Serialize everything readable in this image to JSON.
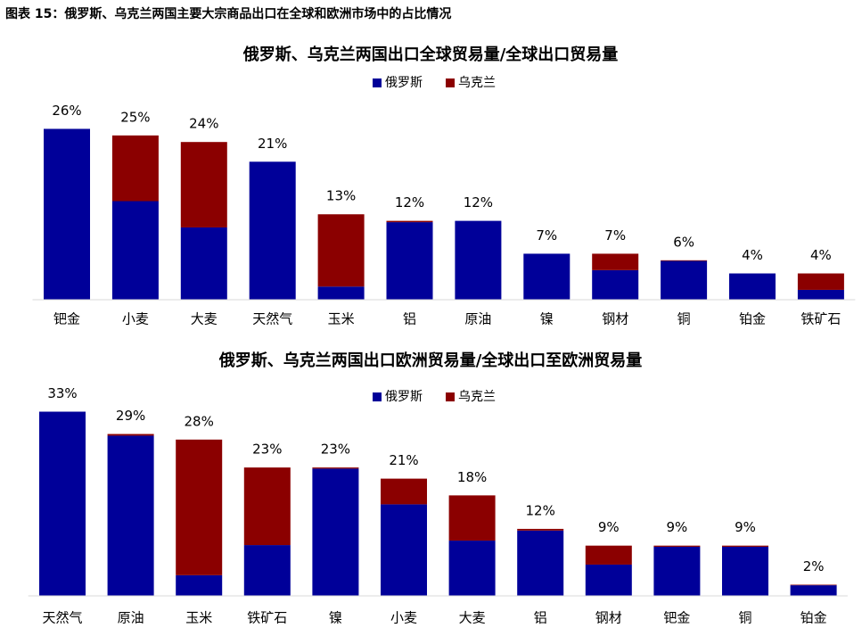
{
  "title": "图表 15：俄罗斯、乌克兰两国主要大宗商品出口在全球和欧洲市场中的占比情况",
  "chart_data": [
    {
      "type": "stacked_bar",
      "title": "俄罗斯、乌克兰两国出口全球贸易量/全球出口贸易量",
      "categories": [
        "钯金",
        "小麦",
        "大麦",
        "天然气",
        "玉米",
        "铝",
        "原油",
        "镍",
        "钢材",
        "铜",
        "铂金",
        "铁矿石"
      ],
      "series": [
        {
          "name": "俄罗斯",
          "color": "#000099",
          "values": [
            26,
            15,
            11,
            21,
            2,
            11.8,
            12,
            7,
            4.5,
            5.9,
            4,
            1.5
          ]
        },
        {
          "name": "乌克兰",
          "color": "#8b0000",
          "values": [
            0,
            10,
            13,
            0,
            11,
            0.2,
            0,
            0,
            2.5,
            0.1,
            0,
            2.5
          ]
        }
      ],
      "totals": [
        26,
        25,
        24,
        21,
        13,
        12,
        12,
        7,
        7,
        6,
        4,
        4
      ],
      "total_labels": [
        "26%",
        "25%",
        "24%",
        "21%",
        "13%",
        "12%",
        "12%",
        "7%",
        "7%",
        "6%",
        "4%",
        "4%"
      ],
      "ylim": [
        0,
        30
      ],
      "legend": "top"
    },
    {
      "type": "stacked_bar",
      "title": "俄罗斯、乌克兰两国出口欧洲贸易量/全球出口至欧洲贸易量",
      "categories": [
        "天然气",
        "原油",
        "玉米",
        "铁矿石",
        "镍",
        "小麦",
        "大麦",
        "铝",
        "钢材",
        "钯金",
        "铜",
        "铂金"
      ],
      "series": [
        {
          "name": "俄罗斯",
          "color": "#000099",
          "values": [
            33,
            28.7,
            3.7,
            9.1,
            22.8,
            16.4,
            9.9,
            11.7,
            5.6,
            8.8,
            8.8,
            1.9
          ]
        },
        {
          "name": "乌克兰",
          "color": "#8b0000",
          "values": [
            0,
            0.3,
            24.3,
            13.9,
            0.2,
            4.6,
            8.1,
            0.3,
            3.4,
            0.2,
            0.2,
            0.1
          ]
        }
      ],
      "totals": [
        33,
        29,
        28,
        23,
        23,
        21,
        18,
        12,
        9,
        9,
        9,
        2
      ],
      "total_labels": [
        "33%",
        "29%",
        "28%",
        "23%",
        "23%",
        "21%",
        "18%",
        "12%",
        "9%",
        "9%",
        "9%",
        "2%"
      ],
      "ylim": [
        0,
        35
      ],
      "legend": "top"
    }
  ]
}
